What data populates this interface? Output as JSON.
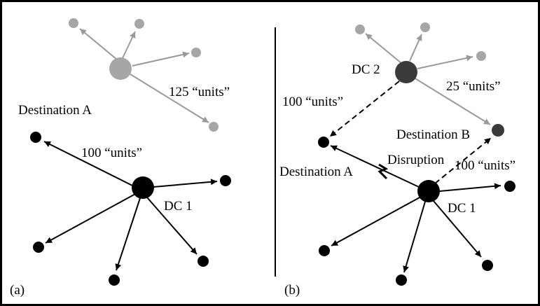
{
  "panel_a": {
    "tag": "(a)",
    "destination_label": "Destination A",
    "dc_label": "DC 1",
    "flow_to_destination_label": "100 “units”",
    "gray_flow_label": "125 “units”"
  },
  "panel_b": {
    "tag": "(b)",
    "dc1_label": "DC 1",
    "dc2_label": "DC 2",
    "destination_a_label": "Destination A",
    "destination_b_label": "Destination B",
    "disruption_label": "Disruption",
    "dc2_to_a_label": "100 “units”",
    "dc2_to_b_label": "25 “units”",
    "dc1_to_b_label": "100 “units”"
  },
  "colors": {
    "active": "#000000",
    "inactive_fill": "#a6a6a6",
    "inactive_line": "#999999",
    "dc2_fill": "#3a3a3a",
    "destination_b_fill": "#3a3a3a"
  }
}
